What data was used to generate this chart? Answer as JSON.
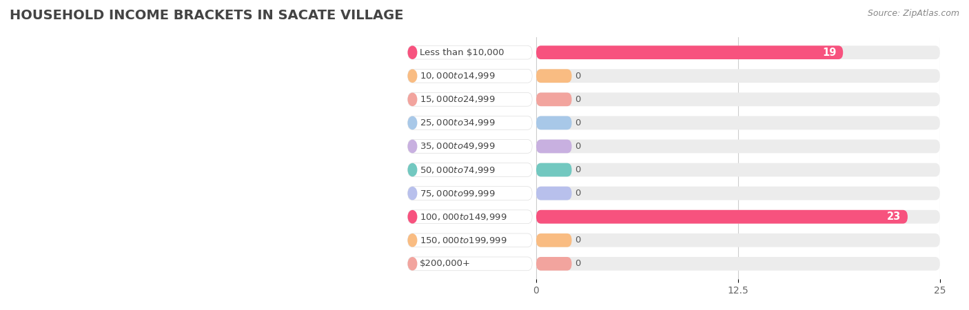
{
  "title": "HOUSEHOLD INCOME BRACKETS IN SACATE VILLAGE",
  "source": "Source: ZipAtlas.com",
  "categories": [
    "Less than $10,000",
    "$10,000 to $14,999",
    "$15,000 to $24,999",
    "$25,000 to $34,999",
    "$35,000 to $49,999",
    "$50,000 to $74,999",
    "$75,000 to $99,999",
    "$100,000 to $149,999",
    "$150,000 to $199,999",
    "$200,000+"
  ],
  "values": [
    19,
    0,
    0,
    0,
    0,
    0,
    0,
    23,
    0,
    0
  ],
  "bar_colors": [
    "#f7527e",
    "#f9bc82",
    "#f2a49e",
    "#a8c8e8",
    "#c8b0e0",
    "#72c8c0",
    "#b8c0ec",
    "#f7527e",
    "#f9bc82",
    "#f2a49e"
  ],
  "xlim": [
    0,
    25
  ],
  "xticks": [
    0,
    12.5,
    25
  ],
  "background_color": "#ffffff",
  "bar_bg_color": "#ececec",
  "title_fontsize": 14,
  "bar_height": 0.58,
  "label_fontsize": 9.5,
  "source_text": "Source: ZipAtlas.com"
}
